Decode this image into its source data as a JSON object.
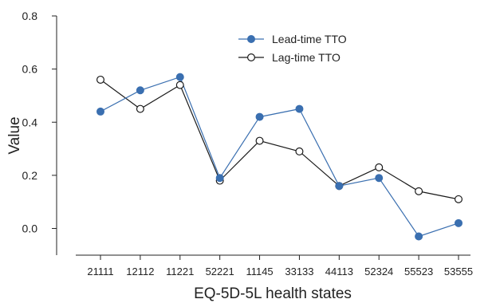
{
  "chart_data": {
    "type": "line",
    "xlabel": "EQ-5D-5L health states",
    "ylabel": "Value",
    "categories": [
      "21111",
      "12112",
      "11221",
      "52221",
      "11145",
      "33133",
      "44113",
      "52324",
      "55523",
      "53555"
    ],
    "ylim": [
      -0.1,
      0.8
    ],
    "yticks": [
      0.0,
      0.2,
      0.4,
      0.6,
      0.8
    ],
    "ytick_labels": [
      "0.0",
      "0.2",
      "0.4",
      "0.6",
      "0.8"
    ],
    "grid": false,
    "legend_position": "top-center",
    "series": [
      {
        "name": "Lead-time TTO",
        "marker": "filled-circle",
        "color": "#3a6fb0",
        "values": [
          0.44,
          0.52,
          0.57,
          0.19,
          0.42,
          0.45,
          0.16,
          0.19,
          -0.03,
          0.02
        ]
      },
      {
        "name": "Lag-time TTO",
        "marker": "open-circle",
        "color": "#1a1a1a",
        "values": [
          0.56,
          0.45,
          0.54,
          0.18,
          0.33,
          0.29,
          0.16,
          0.23,
          0.14,
          0.11
        ]
      }
    ]
  }
}
